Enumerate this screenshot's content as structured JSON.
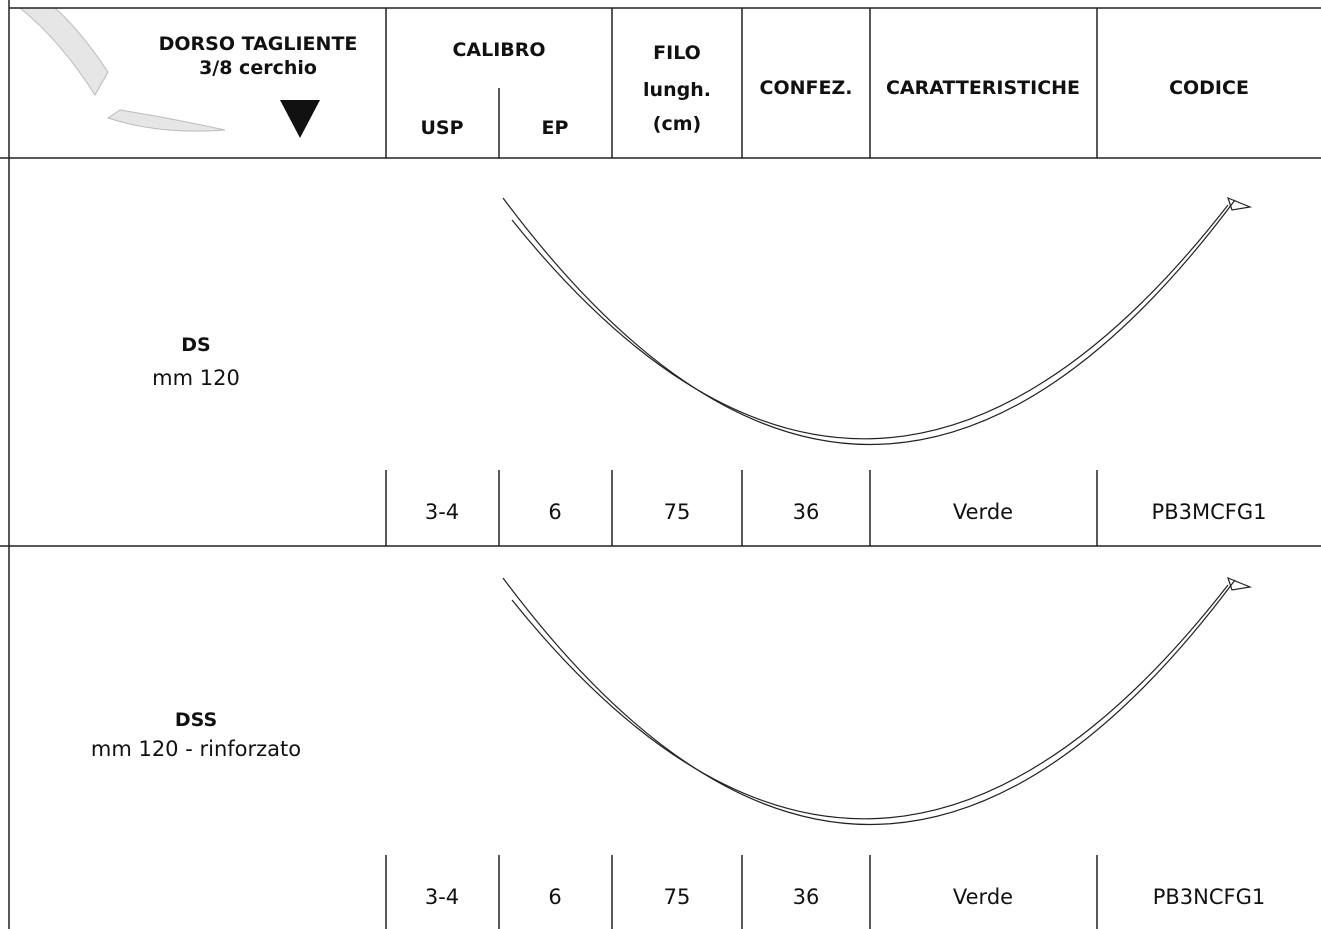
{
  "header": {
    "needle_type": [
      "DORSO TAGLIENTE",
      "3/8 cerchio"
    ],
    "calibro": "CALIBRO",
    "usp": "USP",
    "ep": "EP",
    "filo": [
      "FILO",
      "lungh.",
      "(cm)"
    ],
    "confez": "CONFEZ.",
    "caratteristiche": "CARATTERISTICHE",
    "codice": "CODICE"
  },
  "rows": [
    {
      "name": "DS",
      "size": "mm 120",
      "cells": [
        "3-4",
        "6",
        "75",
        "36",
        "Verde",
        "PB3MCFG1"
      ]
    },
    {
      "name": "DSS",
      "size": "mm 120 - rinforzato",
      "cells": [
        "3-4",
        "6",
        "75",
        "36",
        "Verde",
        "PB3NCFG1"
      ]
    }
  ]
}
